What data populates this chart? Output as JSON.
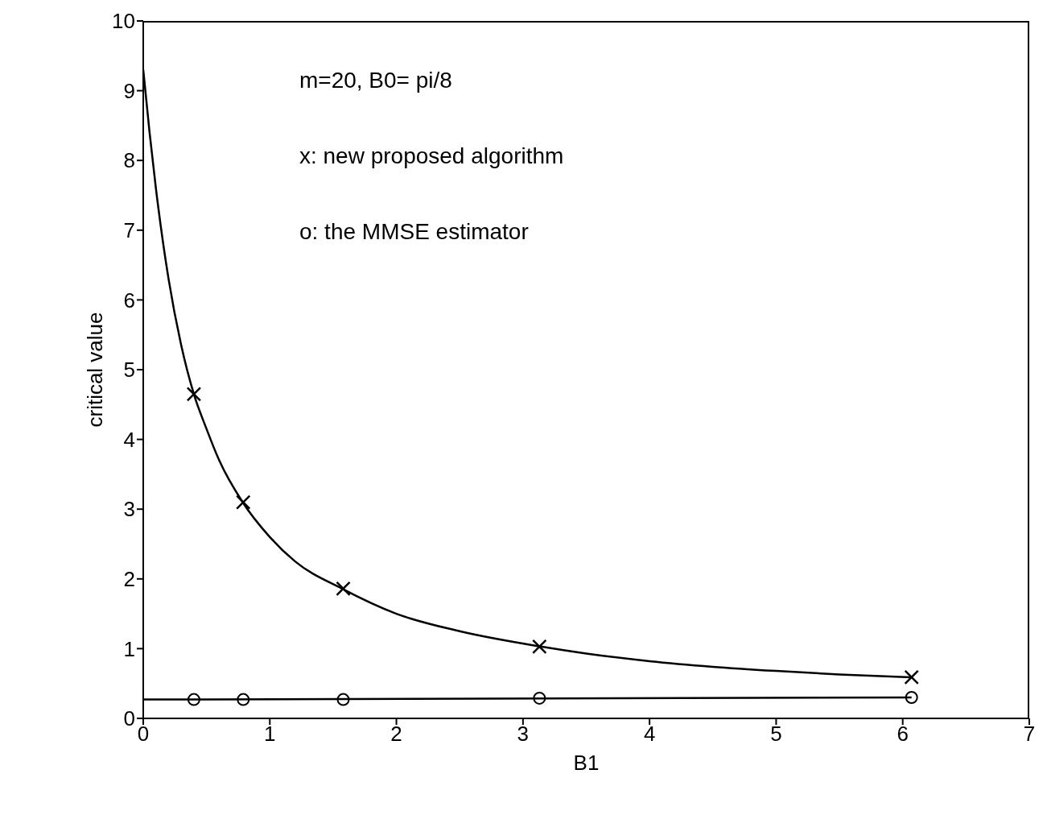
{
  "chart_data": {
    "type": "line",
    "xlabel": "B1",
    "ylabel": "critical value",
    "xlim": [
      0,
      7
    ],
    "ylim": [
      0,
      10
    ],
    "xticks": [
      0,
      1,
      2,
      3,
      4,
      5,
      6,
      7
    ],
    "yticks": [
      0,
      1,
      2,
      3,
      4,
      5,
      6,
      7,
      8,
      9,
      10
    ],
    "grid": false,
    "annotations": [
      "m=20, B0= pi/8",
      "x: new proposed algorithm",
      "o: the MMSE estimator"
    ],
    "series": [
      {
        "marker": "none",
        "color": "#000000",
        "x": [
          0,
          0.05,
          0.1,
          0.2,
          0.3,
          0.4,
          0.5,
          0.6,
          0.785,
          1.0,
          1.2,
          1.57,
          2.0,
          2.5,
          3.14,
          3.5,
          4.0,
          4.5,
          5.0,
          5.5,
          6.07
        ],
        "values": [
          9.3,
          8.4,
          7.6,
          6.3,
          5.35,
          4.65,
          4.15,
          3.7,
          3.1,
          2.6,
          2.25,
          1.86,
          1.5,
          1.25,
          1.03,
          0.93,
          0.82,
          0.74,
          0.68,
          0.63,
          0.59
        ]
      },
      {
        "type": "scatter",
        "marker": "cross",
        "color": "#000000",
        "x": [
          0.4,
          0.79,
          1.58,
          3.13,
          6.07
        ],
        "values": [
          4.65,
          3.1,
          1.86,
          1.03,
          0.59
        ]
      },
      {
        "marker": "none",
        "color": "#000000",
        "x": [
          0,
          6.07
        ],
        "values": [
          0.27,
          0.3
        ]
      },
      {
        "type": "scatter",
        "marker": "circle",
        "color": "#000000",
        "x": [
          0.4,
          0.79,
          1.58,
          3.13,
          6.07
        ],
        "values": [
          0.27,
          0.27,
          0.27,
          0.29,
          0.3
        ]
      }
    ]
  }
}
